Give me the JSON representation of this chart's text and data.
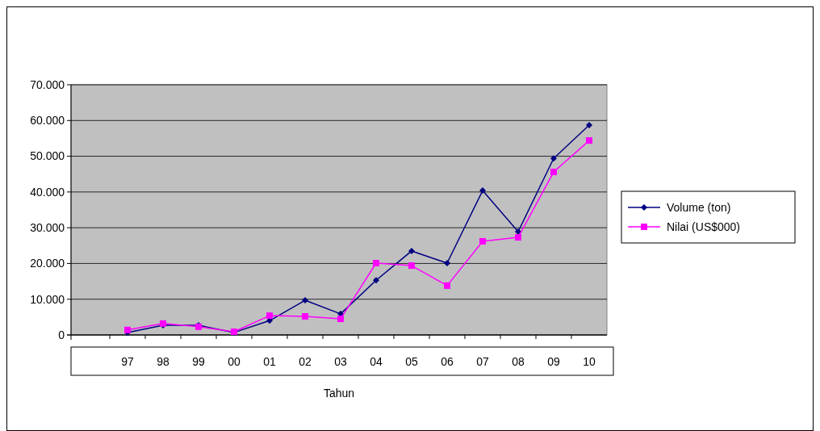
{
  "chart_data": {
    "type": "line",
    "xlabel": "Tahun",
    "categories": [
      "97",
      "98",
      "99",
      "00",
      "01",
      "02",
      "03",
      "04",
      "05",
      "06",
      "07",
      "08",
      "09",
      "10"
    ],
    "series": [
      {
        "name": "Volume (ton)",
        "color": "#000080",
        "marker": "diamond",
        "values": [
          700,
          2700,
          2700,
          700,
          4000,
          9700,
          5900,
          15300,
          23500,
          20100,
          40400,
          28900,
          49400,
          58700
        ]
      },
      {
        "name": "Nilai (US$000)",
        "color": "#ff00ff",
        "marker": "square",
        "values": [
          1400,
          3200,
          2300,
          900,
          5400,
          5200,
          4500,
          20100,
          19400,
          13800,
          26200,
          27300,
          45600,
          54400
        ]
      }
    ],
    "ylim": [
      0,
      70000
    ],
    "yticks": [
      {
        "value": 0,
        "label": "0"
      },
      {
        "value": 10000,
        "label": "10.000"
      },
      {
        "value": 20000,
        "label": "20.000"
      },
      {
        "value": 30000,
        "label": "30.000"
      },
      {
        "value": 40000,
        "label": "40.000"
      },
      {
        "value": 50000,
        "label": "50.000"
      },
      {
        "value": 60000,
        "label": "60.000"
      },
      {
        "value": 70000,
        "label": "70.000"
      }
    ],
    "grid": "y",
    "legend": "right",
    "line_style": "solid"
  }
}
